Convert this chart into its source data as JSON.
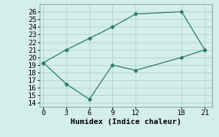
{
  "line1_x": [
    0,
    3,
    6,
    9,
    12,
    18,
    21
  ],
  "line1_y": [
    19.3,
    21.0,
    22.5,
    24.0,
    25.7,
    26.0,
    21.0
  ],
  "line2_x": [
    0,
    3,
    6,
    9,
    12,
    18,
    21
  ],
  "line2_y": [
    19.3,
    16.5,
    14.5,
    19.0,
    18.3,
    20.0,
    21.0
  ],
  "line_color": "#2e7d6e",
  "bg_color": "#d4eeea",
  "grid_color_major": "#b0cfcc",
  "grid_color_minor": "#c8e4e0",
  "xlabel": "Humidex (Indice chaleur)",
  "ylim": [
    13.5,
    27
  ],
  "xlim": [
    -0.5,
    22
  ],
  "yticks": [
    14,
    15,
    16,
    17,
    18,
    19,
    20,
    21,
    22,
    23,
    24,
    25,
    26
  ],
  "xticks": [
    0,
    3,
    6,
    9,
    12,
    18,
    21
  ],
  "marker": "D",
  "marker_size": 2.5,
  "line_width": 1.0,
  "font_size": 7.5,
  "xlabel_fontsize": 8
}
